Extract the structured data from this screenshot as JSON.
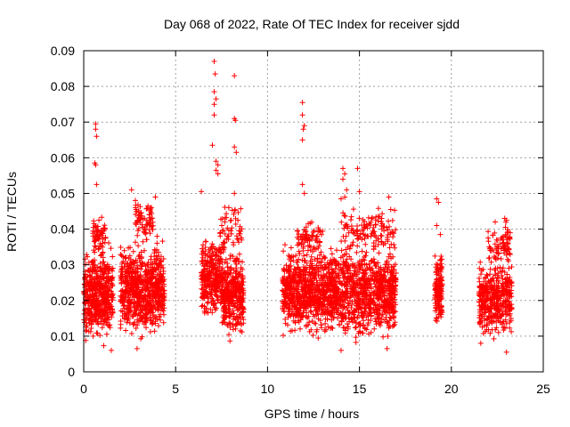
{
  "chart_data": {
    "type": "scatter",
    "title": "Day 068 of 2022, Rate Of TEC Index for receiver sjdd",
    "xlabel": "GPS time / hours",
    "ylabel": "ROTI / TECUs",
    "xlim": [
      0,
      25
    ],
    "ylim": [
      0,
      0.09
    ],
    "xticks": [
      "0",
      "5",
      "10",
      "15",
      "20",
      "25"
    ],
    "yticks": [
      "0",
      "0.01",
      "0.02",
      "0.03",
      "0.04",
      "0.05",
      "0.06",
      "0.07",
      "0.08",
      "0.09"
    ],
    "grid": true,
    "marker": "plus",
    "color": "#ff0000",
    "clusters": [
      {
        "x": [
          0.0,
          1.6
        ],
        "y": [
          0.006,
          0.037
        ],
        "n": 520
      },
      {
        "x": [
          0.5,
          1.2
        ],
        "y": [
          0.03,
          0.045
        ],
        "n": 60
      },
      {
        "x": [
          2.0,
          4.4
        ],
        "y": [
          0.007,
          0.04
        ],
        "n": 720
      },
      {
        "x": [
          2.8,
          3.8
        ],
        "y": [
          0.036,
          0.05
        ],
        "n": 70
      },
      {
        "x": [
          6.4,
          7.6
        ],
        "y": [
          0.012,
          0.04
        ],
        "n": 330
      },
      {
        "x": [
          7.6,
          8.7
        ],
        "y": [
          0.008,
          0.035
        ],
        "n": 330
      },
      {
        "x": [
          7.4,
          8.6
        ],
        "y": [
          0.03,
          0.052
        ],
        "n": 60
      },
      {
        "x": [
          10.8,
          13.6
        ],
        "y": [
          0.008,
          0.038
        ],
        "n": 800
      },
      {
        "x": [
          11.6,
          13.0
        ],
        "y": [
          0.032,
          0.043
        ],
        "n": 70
      },
      {
        "x": [
          13.6,
          17.0
        ],
        "y": [
          0.007,
          0.038
        ],
        "n": 900
      },
      {
        "x": [
          14.0,
          17.0
        ],
        "y": [
          0.032,
          0.048
        ],
        "n": 120
      },
      {
        "x": [
          19.1,
          19.5
        ],
        "y": [
          0.009,
          0.037
        ],
        "n": 160
      },
      {
        "x": [
          21.5,
          23.3
        ],
        "y": [
          0.008,
          0.032
        ],
        "n": 420
      },
      {
        "x": [
          22.0,
          23.2
        ],
        "y": [
          0.028,
          0.043
        ],
        "n": 80
      }
    ],
    "outliers": [
      {
        "x": 0.65,
        "y": 0.0695
      },
      {
        "x": 0.65,
        "y": 0.068
      },
      {
        "x": 0.7,
        "y": 0.066
      },
      {
        "x": 0.6,
        "y": 0.0585
      },
      {
        "x": 0.65,
        "y": 0.058
      },
      {
        "x": 0.7,
        "y": 0.0525
      },
      {
        "x": 2.6,
        "y": 0.051
      },
      {
        "x": 3.5,
        "y": 0.0465
      },
      {
        "x": 3.9,
        "y": 0.049
      },
      {
        "x": 6.4,
        "y": 0.0505
      },
      {
        "x": 7.1,
        "y": 0.087
      },
      {
        "x": 7.15,
        "y": 0.0835
      },
      {
        "x": 7.1,
        "y": 0.0785
      },
      {
        "x": 7.2,
        "y": 0.0765
      },
      {
        "x": 7.1,
        "y": 0.075
      },
      {
        "x": 7.1,
        "y": 0.072
      },
      {
        "x": 7.0,
        "y": 0.0635
      },
      {
        "x": 7.2,
        "y": 0.059
      },
      {
        "x": 7.3,
        "y": 0.058
      },
      {
        "x": 7.2,
        "y": 0.0565
      },
      {
        "x": 7.3,
        "y": 0.0555
      },
      {
        "x": 8.2,
        "y": 0.083
      },
      {
        "x": 8.2,
        "y": 0.071
      },
      {
        "x": 8.25,
        "y": 0.0705
      },
      {
        "x": 8.2,
        "y": 0.063
      },
      {
        "x": 8.3,
        "y": 0.0615
      },
      {
        "x": 8.2,
        "y": 0.05
      },
      {
        "x": 11.9,
        "y": 0.0755
      },
      {
        "x": 11.9,
        "y": 0.072
      },
      {
        "x": 12.0,
        "y": 0.069
      },
      {
        "x": 11.95,
        "y": 0.068
      },
      {
        "x": 11.9,
        "y": 0.065
      },
      {
        "x": 11.9,
        "y": 0.0525
      },
      {
        "x": 12.0,
        "y": 0.05
      },
      {
        "x": 14.1,
        "y": 0.057
      },
      {
        "x": 14.2,
        "y": 0.0555
      },
      {
        "x": 14.1,
        "y": 0.054
      },
      {
        "x": 14.3,
        "y": 0.051
      },
      {
        "x": 14.2,
        "y": 0.049
      },
      {
        "x": 14.0,
        "y": 0.0485
      },
      {
        "x": 14.9,
        "y": 0.057
      },
      {
        "x": 15.0,
        "y": 0.0505
      },
      {
        "x": 16.6,
        "y": 0.049
      },
      {
        "x": 16.7,
        "y": 0.0455
      },
      {
        "x": 19.2,
        "y": 0.0485
      },
      {
        "x": 19.3,
        "y": 0.0475
      },
      {
        "x": 19.2,
        "y": 0.041
      },
      {
        "x": 19.4,
        "y": 0.0385
      },
      {
        "x": 22.9,
        "y": 0.043
      },
      {
        "x": 23.0,
        "y": 0.0425
      },
      {
        "x": 22.0,
        "y": 0.0375
      },
      {
        "x": 23.2,
        "y": 0.039
      },
      {
        "x": 21.6,
        "y": 0.008
      },
      {
        "x": 23.0,
        "y": 0.0055
      },
      {
        "x": 1.5,
        "y": 0.006
      },
      {
        "x": 2.9,
        "y": 0.0065
      },
      {
        "x": 14.0,
        "y": 0.006
      },
      {
        "x": 16.5,
        "y": 0.0065
      }
    ]
  }
}
